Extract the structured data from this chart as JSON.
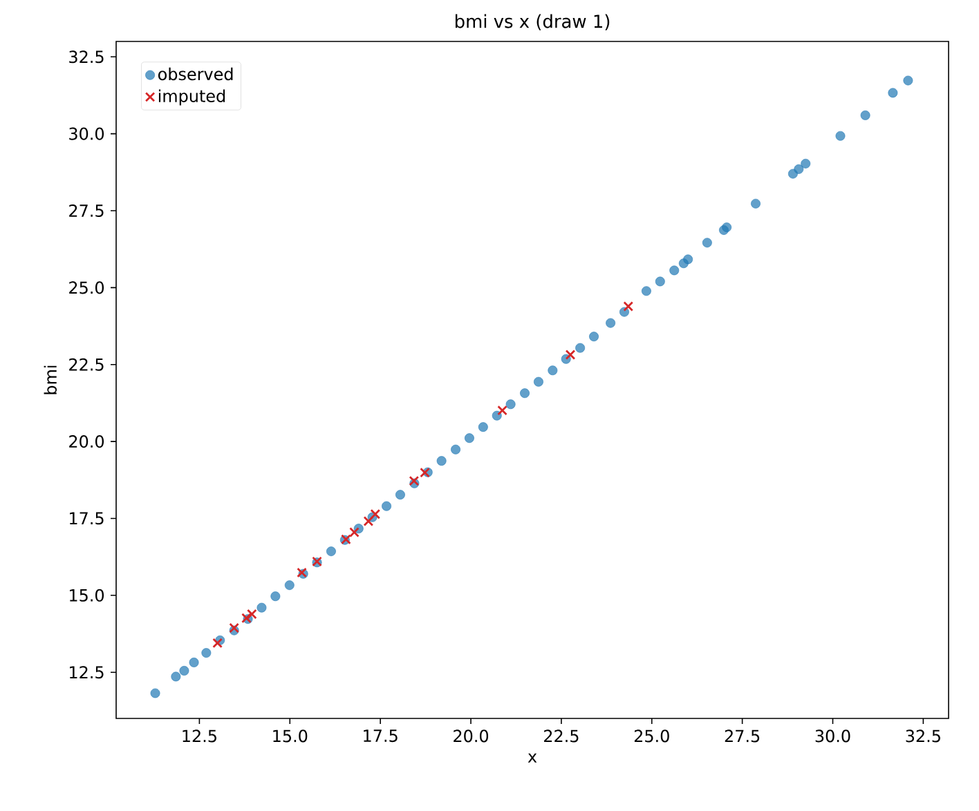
{
  "chart_data": {
    "type": "scatter",
    "title": "bmi vs x (draw 1)",
    "xlabel": "x",
    "ylabel": "bmi",
    "xlim": [
      10.2,
      33.2
    ],
    "ylim": [
      11.0,
      33.0
    ],
    "xticks": [
      {
        "value": 12.5,
        "label": "12.5"
      },
      {
        "value": 15,
        "label": "15.0"
      },
      {
        "value": 17.5,
        "label": "17.5"
      },
      {
        "value": 20,
        "label": "20.0"
      },
      {
        "value": 22.5,
        "label": "22.5"
      },
      {
        "value": 25,
        "label": "25.0"
      },
      {
        "value": 27.5,
        "label": "27.5"
      },
      {
        "value": 30,
        "label": "30.0"
      },
      {
        "value": 32.5,
        "label": "32.5"
      }
    ],
    "yticks": [
      {
        "value": 12.5,
        "label": "12.5"
      },
      {
        "value": 15,
        "label": "15.0"
      },
      {
        "value": 17.5,
        "label": "17.5"
      },
      {
        "value": 20,
        "label": "20.0"
      },
      {
        "value": 22.5,
        "label": "22.5"
      },
      {
        "value": 25,
        "label": "25.0"
      },
      {
        "value": 27.5,
        "label": "27.5"
      },
      {
        "value": 30,
        "label": "30.0"
      },
      {
        "value": 32.5,
        "label": "32.5"
      }
    ],
    "grid": false,
    "legend": "top left",
    "series": [
      {
        "name": "observed",
        "color": "#1f77b4",
        "marker": "circle",
        "x": [
          11.28,
          11.85,
          12.08,
          12.35,
          12.69,
          13.07,
          13.46,
          13.84,
          14.22,
          14.6,
          14.99,
          15.37,
          15.75,
          16.14,
          16.52,
          16.9,
          17.28,
          17.67,
          18.05,
          18.44,
          18.81,
          19.19,
          19.58,
          19.96,
          20.34,
          20.72,
          21.1,
          21.49,
          21.87,
          22.26,
          22.63,
          23.02,
          23.4,
          23.86,
          24.24,
          24.85,
          25.23,
          25.62,
          25.88,
          26.0,
          26.53,
          26.99,
          27.07,
          27.87,
          28.9,
          29.06,
          29.25,
          30.21,
          30.9,
          31.66,
          32.08
        ],
        "values": [
          11.82,
          12.36,
          12.55,
          12.82,
          13.13,
          13.54,
          13.86,
          14.23,
          14.6,
          14.97,
          15.33,
          15.7,
          16.07,
          16.43,
          16.8,
          17.17,
          17.54,
          17.9,
          18.27,
          18.64,
          19.0,
          19.37,
          19.74,
          20.11,
          20.47,
          20.84,
          21.21,
          21.57,
          21.94,
          22.31,
          22.68,
          23.04,
          23.41,
          23.85,
          24.21,
          24.89,
          25.2,
          25.56,
          25.79,
          25.92,
          26.46,
          26.87,
          26.96,
          27.73,
          28.7,
          28.85,
          29.03,
          29.93,
          30.6,
          31.33,
          31.73
        ]
      },
      {
        "name": "imputed",
        "color": "#d62728",
        "marker": "cross",
        "x": [
          13.0,
          13.46,
          13.8,
          13.95,
          15.33,
          15.75,
          16.55,
          16.78,
          17.17,
          17.36,
          18.43,
          18.73,
          20.87,
          22.75,
          24.35
        ],
        "values": [
          13.45,
          13.94,
          14.26,
          14.39,
          15.74,
          16.1,
          16.82,
          17.05,
          17.41,
          17.64,
          18.72,
          18.99,
          21.01,
          22.82,
          24.39
        ]
      }
    ]
  }
}
